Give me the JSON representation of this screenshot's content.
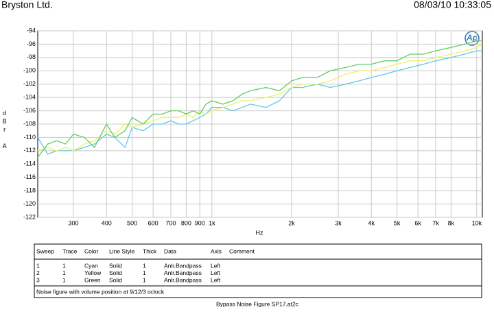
{
  "chart_data": {
    "type": "line",
    "header_left": "Bryston Ltd.",
    "header_right": "08/03/10 10:33:05",
    "logo": "Ap",
    "ylabel": "dBr A",
    "xlabel": "Hz",
    "xscale": "log",
    "grid": true,
    "xlim": [
      220,
      10500
    ],
    "ylim": [
      -122,
      -94
    ],
    "yticks": [
      -94,
      -96,
      -98,
      -100,
      -102,
      -104,
      -106,
      -108,
      -110,
      -112,
      -114,
      -116,
      -118,
      -120,
      -122
    ],
    "xticks": [
      300,
      400,
      500,
      600,
      700,
      800,
      900,
      {
        "value": 1000,
        "label": "1k"
      },
      {
        "value": 2000,
        "label": "2k"
      },
      {
        "value": 3000,
        "label": "3k"
      },
      {
        "value": 4000,
        "label": "4k"
      },
      {
        "value": 5000,
        "label": "5k"
      },
      {
        "value": 6000,
        "label": "6k"
      },
      {
        "value": 7000,
        "label": "7k"
      },
      {
        "value": 8000,
        "label": "8k"
      },
      {
        "value": 10000,
        "label": "10k"
      }
    ],
    "x": [
      220,
      240,
      260,
      280,
      300,
      330,
      360,
      400,
      430,
      470,
      500,
      550,
      600,
      650,
      700,
      750,
      800,
      850,
      900,
      950,
      1000,
      1100,
      1200,
      1300,
      1400,
      1600,
      1800,
      2000,
      2200,
      2500,
      2800,
      3200,
      3600,
      4000,
      4500,
      5000,
      5600,
      6300,
      7000,
      8000,
      9000,
      10000,
      10500
    ],
    "series": [
      {
        "color": "#5cc8e6",
        "values": [
          -110,
          -112.5,
          -112,
          -112,
          -112,
          -111.5,
          -111,
          -109.5,
          -110,
          -111.5,
          -108.5,
          -109,
          -108,
          -108,
          -107.5,
          -108,
          -108,
          -107.5,
          -107,
          -106.5,
          -105.5,
          -105.5,
          -106,
          -105.5,
          -105,
          -105.5,
          -104.5,
          -102.5,
          -102.5,
          -102,
          -102.5,
          -102,
          -101.5,
          -101,
          -100.5,
          -100,
          -99.5,
          -99,
          -98.5,
          -98,
          -97.5,
          -97,
          -97
        ]
      },
      {
        "color": "#eef06a",
        "values": [
          -112,
          -111.5,
          -112,
          -111.5,
          -112,
          -111,
          -110.5,
          -109,
          -109.5,
          -108,
          -108.5,
          -108,
          -107.5,
          -107,
          -107,
          -107,
          -106.5,
          -107,
          -106,
          -106.5,
          -106,
          -105.5,
          -105,
          -104.5,
          -104.5,
          -104,
          -103.5,
          -102.5,
          -102,
          -102,
          -101.5,
          -100.5,
          -100,
          -100,
          -99.5,
          -99,
          -98.5,
          -98.5,
          -98,
          -97.5,
          -97,
          -96.5,
          -96
        ]
      },
      {
        "color": "#62cc62",
        "values": [
          -113,
          -111,
          -110.5,
          -111,
          -109.5,
          -110,
          -111.5,
          -108,
          -110,
          -109,
          -107,
          -108,
          -106.5,
          -106.5,
          -106,
          -106,
          -106.5,
          -106,
          -106.5,
          -105,
          -104.5,
          -105,
          -104.5,
          -103.5,
          -103,
          -102.5,
          -103,
          -101.5,
          -101,
          -101,
          -100,
          -99.5,
          -99,
          -99,
          -98.5,
          -98.5,
          -97.5,
          -97.5,
          -97,
          -96.5,
          -96,
          -95.5,
          -95.5
        ]
      }
    ]
  },
  "table": {
    "headers": [
      "Sweep",
      "Trace",
      "Color",
      "Line Style",
      "Thick",
      "Data",
      "Axis",
      "Comment"
    ],
    "rows": [
      [
        "1",
        "1",
        "Cyan",
        "Solid",
        "1",
        "Anlr.Bandpass",
        "Left"
      ],
      [
        "2",
        "1",
        "Yellow",
        "Solid",
        "1",
        "Anlr.Bandpass",
        "Left"
      ],
      [
        "3",
        "1",
        "Green",
        "Solid",
        "1",
        "Anlr.Bandpass",
        "Left"
      ]
    ],
    "note": "Noise figure with volume position at 9/12/3 oclock"
  },
  "footer": "Bypass Noise Figure SP17.at2c"
}
